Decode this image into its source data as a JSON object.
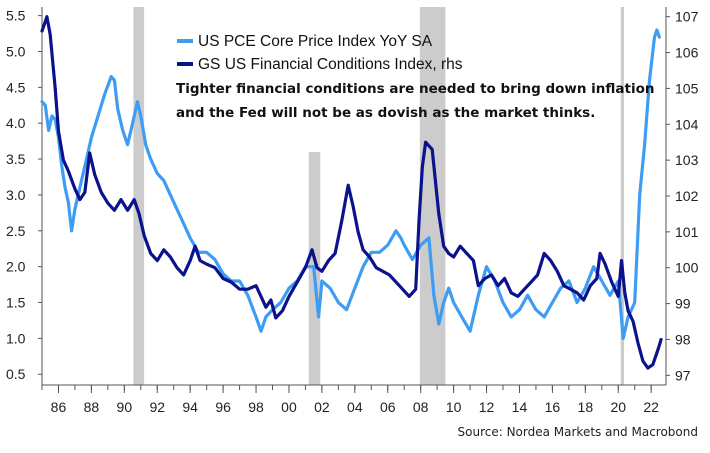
{
  "chart_data": {
    "type": "line",
    "title": "",
    "xlabel": "",
    "ylabel": "",
    "x_range": [
      1985,
      2022.9
    ],
    "x_ticks": [
      {
        "year": 1986,
        "label": "86"
      },
      {
        "year": 1988,
        "label": "88"
      },
      {
        "year": 1990,
        "label": "90"
      },
      {
        "year": 1992,
        "label": "92"
      },
      {
        "year": 1994,
        "label": "94"
      },
      {
        "year": 1996,
        "label": "96"
      },
      {
        "year": 1998,
        "label": "98"
      },
      {
        "year": 2000,
        "label": "00"
      },
      {
        "year": 2002,
        "label": "02"
      },
      {
        "year": 2004,
        "label": "04"
      },
      {
        "year": 2006,
        "label": "06"
      },
      {
        "year": 2008,
        "label": "08"
      },
      {
        "year": 2010,
        "label": "10"
      },
      {
        "year": 2012,
        "label": "12"
      },
      {
        "year": 2014,
        "label": "14"
      },
      {
        "year": 2016,
        "label": "16"
      },
      {
        "year": 2018,
        "label": "18"
      },
      {
        "year": 2020,
        "label": "20"
      },
      {
        "year": 2022,
        "label": "22"
      }
    ],
    "y_left": {
      "range": [
        0.35,
        5.62
      ],
      "ticks": [
        {
          "value": 0.5,
          "label": "0.5"
        },
        {
          "value": 1.0,
          "label": "1.0"
        },
        {
          "value": 1.5,
          "label": "1.5"
        },
        {
          "value": 2.0,
          "label": "2.0"
        },
        {
          "value": 2.5,
          "label": "2.5"
        },
        {
          "value": 3.0,
          "label": "3.0"
        },
        {
          "value": 3.5,
          "label": "3.5"
        },
        {
          "value": 4.0,
          "label": "4.0"
        },
        {
          "value": 4.5,
          "label": "4.5"
        },
        {
          "value": 5.0,
          "label": "5.0"
        },
        {
          "value": 5.5,
          "label": "5.5"
        }
      ]
    },
    "y_right": {
      "range": [
        96.73,
        107.27
      ],
      "ticks": [
        {
          "value": 97,
          "label": "97"
        },
        {
          "value": 98,
          "label": "98"
        },
        {
          "value": 99,
          "label": "99"
        },
        {
          "value": 100,
          "label": "100"
        },
        {
          "value": 101,
          "label": "101"
        },
        {
          "value": 102,
          "label": "102"
        },
        {
          "value": 103,
          "label": "103"
        },
        {
          "value": 104,
          "label": "104"
        },
        {
          "value": 105,
          "label": "105"
        },
        {
          "value": 106,
          "label": "106"
        },
        {
          "value": 107,
          "label": "107"
        }
      ]
    },
    "recessions": [
      {
        "start": 1990.55,
        "end": 1991.2,
        "to_top": true
      },
      {
        "start": 2001.2,
        "end": 2001.9,
        "to_top": false
      },
      {
        "start": 2007.95,
        "end": 2009.5,
        "to_top": true
      },
      {
        "start": 2020.15,
        "end": 2020.35,
        "to_top": true
      }
    ],
    "recession_color": "#cccccc",
    "series": [
      {
        "name": "US PCE Core Price Index YoY SA",
        "axis": "left",
        "color": "#3e9df3",
        "points": [
          [
            1985.0,
            4.3
          ],
          [
            1985.2,
            4.25
          ],
          [
            1985.4,
            3.9
          ],
          [
            1985.6,
            4.1
          ],
          [
            1985.8,
            4.05
          ],
          [
            1986.0,
            3.8
          ],
          [
            1986.2,
            3.4
          ],
          [
            1986.4,
            3.1
          ],
          [
            1986.6,
            2.9
          ],
          [
            1986.8,
            2.5
          ],
          [
            1987.0,
            2.8
          ],
          [
            1987.2,
            3.0
          ],
          [
            1987.4,
            3.2
          ],
          [
            1987.7,
            3.5
          ],
          [
            1988.0,
            3.8
          ],
          [
            1988.4,
            4.1
          ],
          [
            1988.8,
            4.4
          ],
          [
            1989.2,
            4.65
          ],
          [
            1989.4,
            4.6
          ],
          [
            1989.6,
            4.2
          ],
          [
            1989.9,
            3.9
          ],
          [
            1990.2,
            3.7
          ],
          [
            1990.5,
            4.0
          ],
          [
            1990.8,
            4.3
          ],
          [
            1991.0,
            4.1
          ],
          [
            1991.3,
            3.7
          ],
          [
            1991.6,
            3.5
          ],
          [
            1992.0,
            3.3
          ],
          [
            1992.4,
            3.2
          ],
          [
            1992.8,
            3.0
          ],
          [
            1993.2,
            2.8
          ],
          [
            1993.6,
            2.6
          ],
          [
            1994.0,
            2.4
          ],
          [
            1994.5,
            2.2
          ],
          [
            1995.0,
            2.2
          ],
          [
            1995.5,
            2.1
          ],
          [
            1996.0,
            1.9
          ],
          [
            1996.5,
            1.8
          ],
          [
            1997.0,
            1.8
          ],
          [
            1997.5,
            1.6
          ],
          [
            1998.0,
            1.3
          ],
          [
            1998.3,
            1.1
          ],
          [
            1998.6,
            1.3
          ],
          [
            1999.0,
            1.4
          ],
          [
            1999.5,
            1.5
          ],
          [
            2000.0,
            1.7
          ],
          [
            2000.5,
            1.8
          ],
          [
            2001.0,
            2.0
          ],
          [
            2001.5,
            2.0
          ],
          [
            2001.8,
            1.3
          ],
          [
            2002.0,
            1.8
          ],
          [
            2002.5,
            1.7
          ],
          [
            2003.0,
            1.5
          ],
          [
            2003.5,
            1.4
          ],
          [
            2004.0,
            1.7
          ],
          [
            2004.5,
            2.0
          ],
          [
            2005.0,
            2.2
          ],
          [
            2005.5,
            2.2
          ],
          [
            2006.0,
            2.3
          ],
          [
            2006.5,
            2.5
          ],
          [
            2006.8,
            2.4
          ],
          [
            2007.0,
            2.3
          ],
          [
            2007.5,
            2.1
          ],
          [
            2008.0,
            2.3
          ],
          [
            2008.5,
            2.4
          ],
          [
            2008.8,
            1.6
          ],
          [
            2009.1,
            1.2
          ],
          [
            2009.4,
            1.5
          ],
          [
            2009.7,
            1.7
          ],
          [
            2010.0,
            1.5
          ],
          [
            2010.5,
            1.3
          ],
          [
            2011.0,
            1.1
          ],
          [
            2011.5,
            1.6
          ],
          [
            2012.0,
            2.0
          ],
          [
            2012.5,
            1.8
          ],
          [
            2013.0,
            1.5
          ],
          [
            2013.5,
            1.3
          ],
          [
            2014.0,
            1.4
          ],
          [
            2014.5,
            1.6
          ],
          [
            2015.0,
            1.4
          ],
          [
            2015.5,
            1.3
          ],
          [
            2016.0,
            1.5
          ],
          [
            2016.5,
            1.7
          ],
          [
            2017.0,
            1.8
          ],
          [
            2017.5,
            1.5
          ],
          [
            2018.0,
            1.7
          ],
          [
            2018.5,
            2.0
          ],
          [
            2019.0,
            1.8
          ],
          [
            2019.5,
            1.6
          ],
          [
            2020.0,
            1.8
          ],
          [
            2020.3,
            1.0
          ],
          [
            2020.6,
            1.3
          ],
          [
            2021.0,
            1.5
          ],
          [
            2021.3,
            3.0
          ],
          [
            2021.6,
            3.7
          ],
          [
            2021.9,
            4.6
          ],
          [
            2022.2,
            5.2
          ],
          [
            2022.35,
            5.3
          ],
          [
            2022.5,
            5.2
          ]
        ]
      },
      {
        "name": "GS US Financial Conditions Index, rhs",
        "axis": "right",
        "color": "#0a128c",
        "points": [
          [
            1985.0,
            106.6
          ],
          [
            1985.15,
            106.8
          ],
          [
            1985.3,
            107.0
          ],
          [
            1985.5,
            106.5
          ],
          [
            1985.8,
            105.0
          ],
          [
            1986.0,
            103.8
          ],
          [
            1986.3,
            103.0
          ],
          [
            1986.6,
            102.7
          ],
          [
            1987.0,
            102.2
          ],
          [
            1987.3,
            101.9
          ],
          [
            1987.6,
            102.1
          ],
          [
            1987.9,
            103.2
          ],
          [
            1988.2,
            102.6
          ],
          [
            1988.6,
            102.1
          ],
          [
            1989.0,
            101.8
          ],
          [
            1989.4,
            101.6
          ],
          [
            1989.8,
            101.9
          ],
          [
            1990.2,
            101.6
          ],
          [
            1990.6,
            101.9
          ],
          [
            1990.9,
            101.5
          ],
          [
            1991.2,
            100.9
          ],
          [
            1991.6,
            100.4
          ],
          [
            1992.0,
            100.2
          ],
          [
            1992.4,
            100.5
          ],
          [
            1992.8,
            100.3
          ],
          [
            1993.2,
            100.0
          ],
          [
            1993.6,
            99.8
          ],
          [
            1994.0,
            100.2
          ],
          [
            1994.3,
            100.6
          ],
          [
            1994.6,
            100.2
          ],
          [
            1995.0,
            100.1
          ],
          [
            1995.5,
            100.0
          ],
          [
            1996.0,
            99.7
          ],
          [
            1996.5,
            99.6
          ],
          [
            1997.0,
            99.4
          ],
          [
            1997.5,
            99.4
          ],
          [
            1998.0,
            99.5
          ],
          [
            1998.3,
            99.2
          ],
          [
            1998.6,
            98.9
          ],
          [
            1998.9,
            99.1
          ],
          [
            1999.2,
            98.6
          ],
          [
            1999.6,
            98.8
          ],
          [
            2000.0,
            99.2
          ],
          [
            2000.5,
            99.6
          ],
          [
            2001.0,
            100.0
          ],
          [
            2001.4,
            100.5
          ],
          [
            2001.7,
            100.0
          ],
          [
            2002.0,
            99.9
          ],
          [
            2002.4,
            100.2
          ],
          [
            2002.8,
            100.4
          ],
          [
            2003.2,
            101.3
          ],
          [
            2003.6,
            102.3
          ],
          [
            2003.9,
            101.7
          ],
          [
            2004.2,
            101.0
          ],
          [
            2004.5,
            100.5
          ],
          [
            2004.9,
            100.3
          ],
          [
            2005.3,
            100.0
          ],
          [
            2005.7,
            99.9
          ],
          [
            2006.1,
            99.8
          ],
          [
            2006.5,
            99.6
          ],
          [
            2006.9,
            99.4
          ],
          [
            2007.3,
            99.2
          ],
          [
            2007.7,
            99.4
          ],
          [
            2007.9,
            101.3
          ],
          [
            2008.1,
            102.8
          ],
          [
            2008.3,
            103.5
          ],
          [
            2008.5,
            103.4
          ],
          [
            2008.7,
            103.3
          ],
          [
            2008.9,
            102.4
          ],
          [
            2009.1,
            101.5
          ],
          [
            2009.4,
            100.6
          ],
          [
            2009.7,
            100.4
          ],
          [
            2010.0,
            100.3
          ],
          [
            2010.4,
            100.6
          ],
          [
            2010.8,
            100.4
          ],
          [
            2011.2,
            100.2
          ],
          [
            2011.5,
            99.5
          ],
          [
            2011.9,
            99.7
          ],
          [
            2012.3,
            99.8
          ],
          [
            2012.7,
            99.5
          ],
          [
            2013.1,
            99.7
          ],
          [
            2013.5,
            99.3
          ],
          [
            2013.9,
            99.2
          ],
          [
            2014.3,
            99.4
          ],
          [
            2014.7,
            99.6
          ],
          [
            2015.1,
            99.8
          ],
          [
            2015.5,
            100.4
          ],
          [
            2015.9,
            100.2
          ],
          [
            2016.3,
            99.9
          ],
          [
            2016.7,
            99.5
          ],
          [
            2017.1,
            99.4
          ],
          [
            2017.5,
            99.3
          ],
          [
            2017.9,
            99.1
          ],
          [
            2018.3,
            99.5
          ],
          [
            2018.7,
            99.7
          ],
          [
            2018.9,
            100.4
          ],
          [
            2019.2,
            100.1
          ],
          [
            2019.6,
            99.6
          ],
          [
            2020.0,
            99.2
          ],
          [
            2020.2,
            100.2
          ],
          [
            2020.4,
            99.3
          ],
          [
            2020.6,
            98.8
          ],
          [
            2020.9,
            98.5
          ],
          [
            2021.2,
            97.9
          ],
          [
            2021.5,
            97.4
          ],
          [
            2021.8,
            97.2
          ],
          [
            2022.1,
            97.3
          ],
          [
            2022.4,
            97.7
          ],
          [
            2022.6,
            98.0
          ]
        ]
      }
    ],
    "annotation": [
      "Tighter financial conditions are needed to bring down inflation",
      "and the Fed will not be as dovish as the market thinks."
    ],
    "source": "Source: Nordea Markets and Macrobond"
  }
}
